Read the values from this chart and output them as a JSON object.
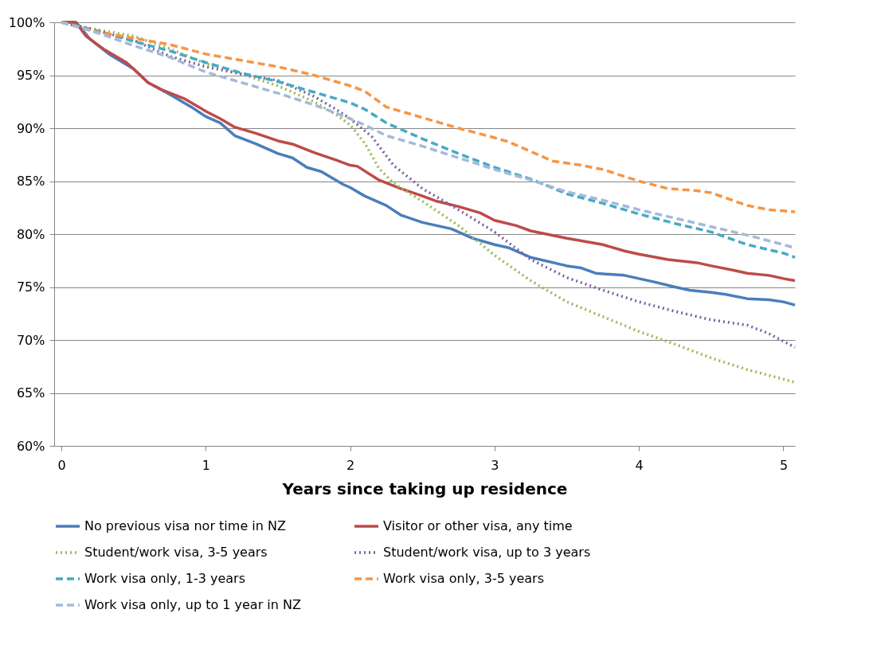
{
  "chart_data": {
    "type": "line",
    "xlabel": "Years since taking up residence",
    "xlim": [
      -0.05,
      5.08
    ],
    "xticks": [
      0,
      1,
      2,
      3,
      4,
      5
    ],
    "ylim": [
      60,
      100
    ],
    "yticks": [
      {
        "value": 60,
        "label": "60%"
      },
      {
        "value": 65,
        "label": "65%"
      },
      {
        "value": 70,
        "label": "70%"
      },
      {
        "value": 75,
        "label": "75%"
      },
      {
        "value": 80,
        "label": "80%"
      },
      {
        "value": 85,
        "label": "85%"
      },
      {
        "value": 90,
        "label": "90%"
      },
      {
        "value": 95,
        "label": "95%"
      },
      {
        "value": 100,
        "label": "100%"
      }
    ],
    "grid": "y",
    "legend": "bottom",
    "marker": "none",
    "series": [
      {
        "name": "No previous visa nor time in NZ",
        "color": "#4a7ebb",
        "line_style": "solid",
        "x": [
          0,
          0.1,
          0.2,
          0.33,
          0.5,
          0.6,
          0.75,
          0.9,
          1.0,
          1.1,
          1.2,
          1.35,
          1.5,
          1.6,
          1.7,
          1.8,
          1.95,
          2.0,
          2.1,
          2.25,
          2.35,
          2.5,
          2.7,
          2.85,
          3.0,
          3.1,
          3.25,
          3.5,
          3.6,
          3.7,
          3.9,
          4.1,
          4.25,
          4.35,
          4.5,
          4.6,
          4.75,
          4.9,
          5.0,
          5.08
        ],
        "values": [
          100,
          100,
          98.4,
          97,
          95.6,
          94.3,
          93.2,
          92,
          91.1,
          90.5,
          89.3,
          88.5,
          87.6,
          87.2,
          86.3,
          85.9,
          84.7,
          84.4,
          83.6,
          82.7,
          81.8,
          81.1,
          80.5,
          79.6,
          79.0,
          78.7,
          77.8,
          77.0,
          76.8,
          76.3,
          76.1,
          75.5,
          75.0,
          74.7,
          74.5,
          74.3,
          73.9,
          73.8,
          73.6,
          73.3
        ]
      },
      {
        "name": "Visitor or other visa, any time",
        "color": "#be4b48",
        "line_style": "solid",
        "x": [
          0,
          0.1,
          0.17,
          0.3,
          0.45,
          0.5,
          0.6,
          0.7,
          0.85,
          1.0,
          1.1,
          1.2,
          1.35,
          1.5,
          1.6,
          1.75,
          1.9,
          2.0,
          2.05,
          2.2,
          2.35,
          2.5,
          2.6,
          2.75,
          2.9,
          3.0,
          3.15,
          3.25,
          3.5,
          3.75,
          3.9,
          4.0,
          4.2,
          4.4,
          4.5,
          4.65,
          4.75,
          4.9,
          5.0,
          5.08
        ],
        "values": [
          100,
          100,
          98.7,
          97.4,
          96.2,
          95.6,
          94.3,
          93.6,
          92.8,
          91.6,
          90.9,
          90.1,
          89.5,
          88.8,
          88.5,
          87.7,
          87.0,
          86.5,
          86.4,
          85.1,
          84.3,
          83.6,
          83.1,
          82.6,
          82.0,
          81.3,
          80.8,
          80.3,
          79.6,
          79.0,
          78.4,
          78.1,
          77.6,
          77.3,
          77.0,
          76.6,
          76.3,
          76.1,
          75.8,
          75.6
        ]
      },
      {
        "name": "Student/work visa, 3-5 years",
        "color": "#98b954",
        "line_style": "dotted",
        "x": [
          0,
          0.25,
          0.5,
          0.75,
          1.0,
          1.25,
          1.5,
          1.75,
          1.9,
          2.0,
          2.1,
          2.2,
          2.3,
          2.5,
          2.75,
          3.0,
          3.25,
          3.5,
          3.75,
          4.0,
          4.25,
          4.5,
          4.75,
          5.0,
          5.08
        ],
        "values": [
          100,
          99.3,
          98.7,
          97.5,
          96.1,
          95.1,
          94.0,
          92.5,
          91.3,
          90.3,
          88.6,
          86.2,
          84.8,
          83.1,
          80.8,
          78.0,
          75.6,
          73.6,
          72.2,
          70.8,
          69.6,
          68.3,
          67.2,
          66.3,
          66.0
        ]
      },
      {
        "name": "Student/work visa, up to 3 years",
        "color": "#7d60a0",
        "line_style": "dotted",
        "x": [
          0,
          0.25,
          0.5,
          0.75,
          1.0,
          1.25,
          1.5,
          1.75,
          1.9,
          2.0,
          2.15,
          2.3,
          2.5,
          2.75,
          3.0,
          3.25,
          3.5,
          3.75,
          4.0,
          4.25,
          4.5,
          4.75,
          4.9,
          5.08
        ],
        "values": [
          100,
          99.2,
          98.3,
          96.8,
          95.8,
          95.1,
          94.5,
          93.0,
          91.8,
          90.9,
          89.2,
          86.5,
          84.3,
          82.3,
          80.2,
          77.6,
          75.9,
          74.7,
          73.6,
          72.7,
          71.9,
          71.4,
          70.6,
          69.3
        ]
      },
      {
        "name": "Work visa only, 1-3 years",
        "color": "#46aac5",
        "line_style": "dashed",
        "x": [
          0,
          0.25,
          0.5,
          0.75,
          1.0,
          1.25,
          1.5,
          1.75,
          2.0,
          2.1,
          2.25,
          2.5,
          2.75,
          3.0,
          3.25,
          3.5,
          3.75,
          4.0,
          4.25,
          4.5,
          4.75,
          5.0,
          5.08
        ],
        "values": [
          100,
          99.2,
          98.2,
          97.3,
          96.2,
          95.2,
          94.4,
          93.4,
          92.4,
          91.8,
          90.5,
          89.0,
          87.6,
          86.3,
          85.2,
          83.8,
          82.9,
          81.9,
          81.0,
          80.2,
          79.0,
          78.2,
          77.8
        ]
      },
      {
        "name": "Work visa only, 3-5 years",
        "color": "#f69546",
        "line_style": "dashed",
        "x": [
          0,
          0.25,
          0.5,
          0.75,
          1.0,
          1.25,
          1.5,
          1.75,
          2.0,
          2.1,
          2.25,
          2.5,
          2.75,
          3.0,
          3.1,
          3.25,
          3.4,
          3.6,
          3.75,
          4.0,
          4.2,
          4.4,
          4.5,
          4.75,
          4.9,
          5.08
        ],
        "values": [
          100,
          99.1,
          98.5,
          97.9,
          97.0,
          96.4,
          95.8,
          95.0,
          94.0,
          93.5,
          92.0,
          91.0,
          90.0,
          89.1,
          88.7,
          87.8,
          86.9,
          86.5,
          86.1,
          85.0,
          84.3,
          84.1,
          83.9,
          82.7,
          82.3,
          82.1
        ]
      },
      {
        "name": "Work visa only, up to 1 year in NZ",
        "color": "#a5b9d9",
        "line_style": "dashed",
        "x": [
          0,
          0.25,
          0.5,
          0.75,
          1.0,
          1.25,
          1.5,
          1.75,
          2.0,
          2.1,
          2.25,
          2.5,
          2.75,
          3.0,
          3.25,
          3.5,
          3.75,
          4.0,
          4.25,
          4.5,
          4.75,
          5.0,
          5.08
        ],
        "values": [
          100,
          99.0,
          97.8,
          96.7,
          95.3,
          94.3,
          93.3,
          92.2,
          90.9,
          90.3,
          89.3,
          88.3,
          87.2,
          86.1,
          85.1,
          84.0,
          83.2,
          82.3,
          81.5,
          80.7,
          79.9,
          79.0,
          78.7
        ]
      }
    ]
  }
}
